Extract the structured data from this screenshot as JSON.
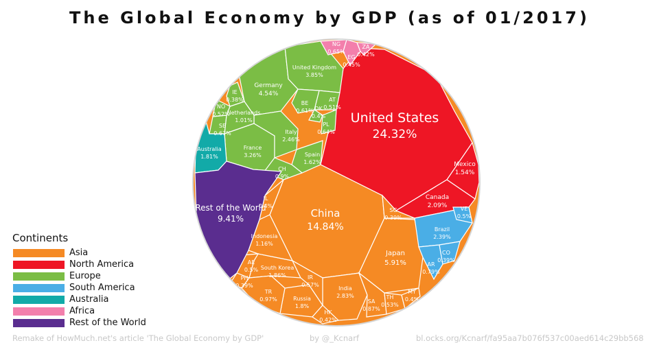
{
  "title": "The Global Economy by GDP (as of 01/2017)",
  "legend": {
    "title": "Continents",
    "items": [
      {
        "label": "Asia",
        "color": "#f58a24"
      },
      {
        "label": "North America",
        "color": "#ee1625"
      },
      {
        "label": "Europe",
        "color": "#7bbd45"
      },
      {
        "label": "South America",
        "color": "#4aaee6"
      },
      {
        "label": "Australia",
        "color": "#12aaa8"
      },
      {
        "label": "Africa",
        "color": "#f37fac"
      },
      {
        "label": "Rest of the World",
        "color": "#5a2d8f"
      }
    ]
  },
  "footer": {
    "left": "Remake of HowMuch.net's article 'The Global Economy by GDP'",
    "middle": "by @_Kcnarf",
    "right": "bl.ocks.org/Kcnarf/fa95aa7b076f537c00aed614c29bb568"
  },
  "chart_data": {
    "type": "voronoi-treemap",
    "series": [
      {
        "name": "United States",
        "label": "United States",
        "value": "24.32%",
        "continent": "North America"
      },
      {
        "name": "Mexico",
        "label": "Mexico",
        "value": "1.54%",
        "continent": "North America"
      },
      {
        "name": "Canada",
        "label": "Canada",
        "value": "2.09%",
        "continent": "North America"
      },
      {
        "name": "China",
        "label": "China",
        "value": "14.84%",
        "continent": "Asia"
      },
      {
        "name": "Japan",
        "label": "Japan",
        "value": "5.91%",
        "continent": "Asia"
      },
      {
        "name": "India",
        "label": "India",
        "value": "2.83%",
        "continent": "Asia"
      },
      {
        "name": "Russia",
        "label": "Russia",
        "value": "1.8%",
        "continent": "Asia"
      },
      {
        "name": "South Korea",
        "label": "South Korea",
        "value": "1.86%",
        "continent": "Asia"
      },
      {
        "name": "Indonesia",
        "label": "Indonesia",
        "value": "1.16%",
        "continent": "Asia"
      },
      {
        "name": "TR",
        "label": "TR",
        "value": "0.97%",
        "continent": "Asia"
      },
      {
        "name": "IR",
        "label": "IR",
        "value": "0.57%",
        "continent": "Asia"
      },
      {
        "name": "SA",
        "label": "SA",
        "value": "0.87%",
        "continent": "Asia"
      },
      {
        "name": "TH",
        "label": "TH",
        "value": "0.53%",
        "continent": "Asia"
      },
      {
        "name": "MY",
        "label": "MY",
        "value": "0.4%",
        "continent": "Asia"
      },
      {
        "name": "HK",
        "label": "HK",
        "value": "0.42%",
        "continent": "Asia"
      },
      {
        "name": "SG",
        "label": "SG",
        "value": "0.39%",
        "continent": "Asia"
      },
      {
        "name": "AE",
        "label": "AE",
        "value": "0.5%",
        "continent": "Asia"
      },
      {
        "name": "PH",
        "label": "PH",
        "value": "0.39%",
        "continent": "Asia"
      },
      {
        "name": "IL",
        "label": "IL",
        "value": "0.4%",
        "continent": "Asia"
      },
      {
        "name": "Germany",
        "label": "Germany",
        "value": "4.54%",
        "continent": "Europe"
      },
      {
        "name": "United Kingdom",
        "label": "United Kingdom",
        "value": "3.85%",
        "continent": "Europe"
      },
      {
        "name": "France",
        "label": "France",
        "value": "3.26%",
        "continent": "Europe"
      },
      {
        "name": "Italy",
        "label": "Italy",
        "value": "2.46%",
        "continent": "Europe"
      },
      {
        "name": "Spain",
        "label": "Spain",
        "value": "1.62%",
        "continent": "Europe"
      },
      {
        "name": "Netherlands",
        "label": "Netherlands",
        "value": "1.01%",
        "continent": "Europe"
      },
      {
        "name": "CH",
        "label": "CH",
        "value": "0.9%",
        "continent": "Europe"
      },
      {
        "name": "SE",
        "label": "SE",
        "value": "0.67%",
        "continent": "Europe"
      },
      {
        "name": "PL",
        "label": "PL",
        "value": "0.64%",
        "continent": "Europe"
      },
      {
        "name": "BE",
        "label": "BE",
        "value": "0.61%",
        "continent": "Europe"
      },
      {
        "name": "NO",
        "label": "NO",
        "value": "0.52%",
        "continent": "Europe"
      },
      {
        "name": "AT",
        "label": "AT",
        "value": "0.51%",
        "continent": "Europe"
      },
      {
        "name": "DK",
        "label": "DK",
        "value": "0.4%",
        "continent": "Europe"
      },
      {
        "name": "IE",
        "label": "IE",
        "value": "0.38%",
        "continent": "Europe"
      },
      {
        "name": "Brazil",
        "label": "Brazil",
        "value": "2.39%",
        "continent": "South America"
      },
      {
        "name": "AR",
        "label": "AR",
        "value": "0.79%",
        "continent": "South America"
      },
      {
        "name": "VE",
        "label": "VE",
        "value": "0.5%",
        "continent": "South America"
      },
      {
        "name": "CO",
        "label": "CO",
        "value": "0.39%",
        "continent": "South America"
      },
      {
        "name": "Australia",
        "label": "Australia",
        "value": "1.81%",
        "continent": "Australia"
      },
      {
        "name": "NG",
        "label": "NG",
        "value": "0.65%",
        "continent": "Africa"
      },
      {
        "name": "EG",
        "label": "EG",
        "value": "0.45%",
        "continent": "Africa"
      },
      {
        "name": "ZA",
        "label": "ZA",
        "value": "0.42%",
        "continent": "Africa"
      },
      {
        "name": "Rest of the World",
        "label": "Rest of the World",
        "value": "9.41%",
        "continent": "Rest of the World"
      }
    ]
  }
}
